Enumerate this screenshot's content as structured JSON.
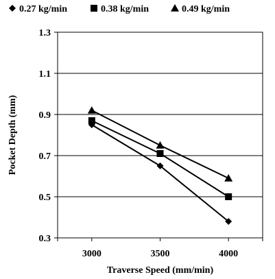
{
  "chart_data": {
    "type": "line",
    "title": "",
    "xlabel": "Traverse Speed (mm/min)",
    "ylabel": "Pocket Depth (mm)",
    "x": [
      3000,
      3500,
      4000
    ],
    "x_tick_labels": [
      "3000",
      "3500",
      "4000"
    ],
    "xlim": [
      2750,
      4250
    ],
    "ylim": [
      0.3,
      1.3
    ],
    "y_tick_labels": [
      "0.3",
      "0.5",
      "0.7",
      "0.9",
      "1.1",
      "1.3"
    ],
    "y_ticks": [
      0.3,
      0.5,
      0.7,
      0.9,
      1.1,
      1.3
    ],
    "grid": "horizontal",
    "legend_position": "top",
    "series": [
      {
        "name": "0.27 kg/min",
        "marker": "diamond",
        "values": [
          0.85,
          0.65,
          0.38
        ]
      },
      {
        "name": "0.38 kg/min",
        "marker": "square",
        "values": [
          0.87,
          0.71,
          0.5
        ]
      },
      {
        "name": "0.49 kg/min",
        "marker": "triangle",
        "values": [
          0.92,
          0.75,
          0.59
        ]
      }
    ],
    "colors": {
      "line": "#000000",
      "grid": "#000000"
    }
  }
}
